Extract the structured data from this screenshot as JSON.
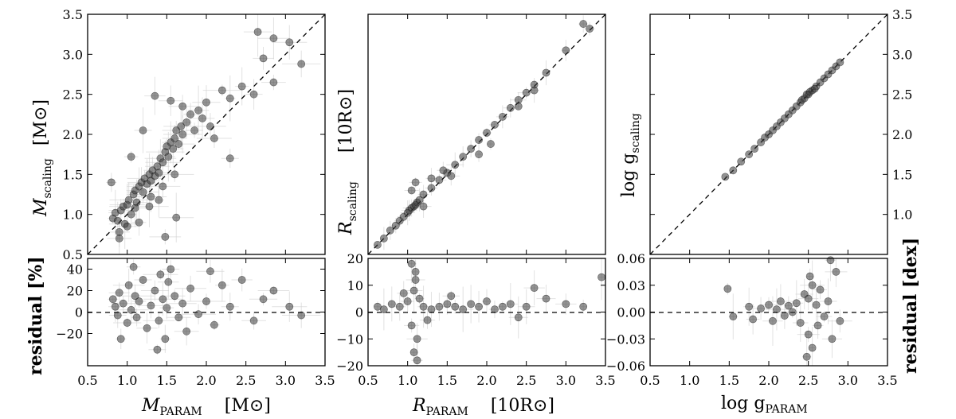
{
  "chart_data": [
    {
      "type": "scatter",
      "panel": "mass-main",
      "xlim": [
        0.5,
        3.5
      ],
      "ylim": [
        0.5,
        3.5
      ],
      "yticks": [
        "0.5",
        "1.0",
        "1.5",
        "2.0",
        "2.5",
        "3.0",
        "3.5"
      ],
      "ylabel": "M_scaling",
      "ylabel_main": "M",
      "ylabel_sub": "scaling",
      "ylabel_unit": "[M⊙]",
      "reference_line": "y = x (dashed)",
      "points": [
        [
          0.82,
          0.95
        ],
        [
          0.85,
          1.02
        ],
        [
          0.88,
          0.92
        ],
        [
          0.9,
          0.78
        ],
        [
          0.92,
          1.05
        ],
        [
          0.95,
          1.1
        ],
        [
          0.97,
          0.88
        ],
        [
          1.0,
          1.12
        ],
        [
          1.02,
          1.18
        ],
        [
          1.05,
          1.0
        ],
        [
          1.08,
          1.25
        ],
        [
          1.1,
          1.3
        ],
        [
          1.12,
          1.15
        ],
        [
          1.15,
          1.35
        ],
        [
          1.18,
          1.4
        ],
        [
          1.2,
          1.28
        ],
        [
          1.22,
          1.45
        ],
        [
          1.25,
          1.38
        ],
        [
          1.28,
          1.5
        ],
        [
          1.3,
          1.42
        ],
        [
          1.32,
          1.55
        ],
        [
          1.35,
          1.48
        ],
        [
          1.38,
          1.6
        ],
        [
          1.4,
          1.52
        ],
        [
          1.42,
          1.7
        ],
        [
          1.45,
          1.65
        ],
        [
          1.48,
          1.78
        ],
        [
          1.5,
          1.85
        ],
        [
          1.52,
          1.72
        ],
        [
          1.55,
          1.9
        ],
        [
          1.58,
          1.82
        ],
        [
          1.6,
          1.95
        ],
        [
          1.62,
          2.05
        ],
        [
          1.65,
          1.88
        ],
        [
          1.68,
          2.1
        ],
        [
          1.7,
          2.0
        ],
        [
          1.75,
          2.15
        ],
        [
          1.8,
          2.25
        ],
        [
          1.85,
          2.05
        ],
        [
          1.9,
          2.3
        ],
        [
          1.95,
          2.2
        ],
        [
          2.0,
          2.4
        ],
        [
          2.05,
          2.1
        ],
        [
          2.1,
          1.95
        ],
        [
          2.2,
          2.55
        ],
        [
          2.3,
          2.45
        ],
        [
          2.45,
          2.6
        ],
        [
          2.6,
          2.5
        ],
        [
          2.72,
          2.95
        ],
        [
          2.85,
          2.65
        ],
        [
          2.65,
          3.28
        ],
        [
          2.85,
          3.2
        ],
        [
          3.05,
          3.15
        ],
        [
          3.2,
          2.88
        ],
        [
          0.8,
          1.4
        ],
        [
          1.05,
          1.72
        ],
        [
          1.2,
          2.05
        ],
        [
          1.35,
          2.48
        ],
        [
          1.55,
          2.42
        ],
        [
          1.7,
          2.35
        ],
        [
          1.48,
          0.72
        ],
        [
          1.62,
          0.96
        ],
        [
          1.28,
          1.1
        ],
        [
          1.4,
          1.18
        ],
        [
          1.15,
          0.9
        ],
        [
          2.3,
          1.7
        ],
        [
          1.0,
          0.85
        ],
        [
          0.9,
          0.7
        ],
        [
          1.1,
          1.08
        ],
        [
          1.3,
          1.22
        ],
        [
          1.45,
          1.35
        ],
        [
          1.6,
          1.5
        ]
      ]
    },
    {
      "type": "scatter",
      "panel": "mass-residual",
      "xlim": [
        0.5,
        3.5
      ],
      "ylim": [
        -50,
        50
      ],
      "xticks": [
        "0.5",
        "1.0",
        "1.5",
        "2.0",
        "2.5",
        "3.0",
        "3.5"
      ],
      "yticks": [
        "−20",
        "0",
        "20",
        "40"
      ],
      "xlabel": "M_PARAM",
      "xlabel_main": "M",
      "xlabel_sub": "PARAM",
      "xlabel_unit": "[M⊙]",
      "ylabel": "residual [%]",
      "reference_line": "y = 0 (dashed)",
      "points": [
        [
          0.82,
          12
        ],
        [
          0.85,
          5
        ],
        [
          0.88,
          -3
        ],
        [
          0.9,
          18
        ],
        [
          0.95,
          8
        ],
        [
          1.0,
          -10
        ],
        [
          1.02,
          25
        ],
        [
          1.05,
          2
        ],
        [
          1.1,
          15
        ],
        [
          1.12,
          -5
        ],
        [
          1.15,
          10
        ],
        [
          1.2,
          30
        ],
        [
          1.25,
          -15
        ],
        [
          1.3,
          6
        ],
        [
          1.35,
          20
        ],
        [
          1.4,
          -8
        ],
        [
          1.42,
          35
        ],
        [
          1.45,
          12
        ],
        [
          1.48,
          -25
        ],
        [
          1.5,
          4
        ],
        [
          1.55,
          40
        ],
        [
          1.6,
          15
        ],
        [
          1.65,
          -5
        ],
        [
          1.7,
          8
        ],
        [
          1.8,
          22
        ],
        [
          1.9,
          -2
        ],
        [
          2.0,
          10
        ],
        [
          2.1,
          -12
        ],
        [
          2.2,
          25
        ],
        [
          2.3,
          5
        ],
        [
          2.45,
          30
        ],
        [
          2.6,
          -8
        ],
        [
          2.72,
          12
        ],
        [
          2.85,
          20
        ],
        [
          3.05,
          5
        ],
        [
          3.2,
          -3
        ],
        [
          0.92,
          -25
        ],
        [
          1.08,
          42
        ],
        [
          1.38,
          -35
        ],
        [
          1.52,
          28
        ],
        [
          1.75,
          -18
        ],
        [
          2.05,
          38
        ]
      ]
    },
    {
      "type": "scatter",
      "panel": "radius-main",
      "xlim": [
        0.5,
        3.5
      ],
      "ylim": [
        0.5,
        3.5
      ],
      "ylabel": "R_scaling",
      "ylabel_main": "R",
      "ylabel_sub": "scaling",
      "ylabel_unit": "[10R⊙]",
      "reference_line": "y = x (dashed)",
      "points": [
        [
          0.62,
          0.62
        ],
        [
          0.7,
          0.7
        ],
        [
          0.78,
          0.8
        ],
        [
          0.85,
          0.86
        ],
        [
          0.9,
          0.92
        ],
        [
          0.95,
          0.97
        ],
        [
          1.0,
          1.02
        ],
        [
          1.02,
          1.05
        ],
        [
          1.05,
          1.08
        ],
        [
          1.08,
          1.1
        ],
        [
          1.1,
          1.12
        ],
        [
          1.12,
          1.15
        ],
        [
          1.15,
          1.18
        ],
        [
          1.2,
          1.25
        ],
        [
          1.3,
          1.33
        ],
        [
          1.4,
          1.43
        ],
        [
          1.5,
          1.52
        ],
        [
          1.6,
          1.62
        ],
        [
          1.7,
          1.72
        ],
        [
          1.8,
          1.82
        ],
        [
          1.9,
          1.93
        ],
        [
          2.0,
          2.02
        ],
        [
          2.1,
          2.12
        ],
        [
          2.2,
          2.22
        ],
        [
          2.3,
          2.33
        ],
        [
          2.4,
          2.43
        ],
        [
          2.5,
          2.52
        ],
        [
          2.6,
          2.62
        ],
        [
          2.75,
          2.77
        ],
        [
          3.0,
          3.05
        ],
        [
          3.22,
          3.38
        ],
        [
          3.3,
          3.32
        ],
        [
          1.1,
          1.4
        ],
        [
          1.05,
          1.3
        ],
        [
          1.2,
          1.1
        ],
        [
          1.55,
          1.48
        ],
        [
          1.9,
          1.75
        ],
        [
          2.05,
          1.88
        ],
        [
          2.4,
          2.35
        ],
        [
          2.6,
          2.55
        ],
        [
          1.3,
          1.45
        ],
        [
          1.45,
          1.55
        ]
      ]
    },
    {
      "type": "scatter",
      "panel": "radius-residual",
      "xlim": [
        0.5,
        3.5
      ],
      "ylim": [
        -20,
        20
      ],
      "xticks": [
        "0.5",
        "1.0",
        "1.5",
        "2.0",
        "2.5",
        "3.0",
        "3.5"
      ],
      "yticks": [
        "−20",
        "−10",
        "0",
        "10",
        "20"
      ],
      "xlabel": "R_PARAM",
      "xlabel_main": "R",
      "xlabel_sub": "PARAM",
      "xlabel_unit": "[10R⊙]",
      "reference_line": "y = 0 (dashed)",
      "points": [
        [
          0.62,
          2
        ],
        [
          0.7,
          1
        ],
        [
          0.8,
          3
        ],
        [
          0.9,
          2
        ],
        [
          1.0,
          4
        ],
        [
          1.05,
          -5
        ],
        [
          1.08,
          8
        ],
        [
          1.1,
          12
        ],
        [
          1.12,
          -10
        ],
        [
          1.1,
          15
        ],
        [
          1.08,
          -15
        ],
        [
          1.15,
          5
        ],
        [
          1.2,
          2
        ],
        [
          1.3,
          1
        ],
        [
          1.4,
          2
        ],
        [
          1.5,
          3
        ],
        [
          1.6,
          2
        ],
        [
          1.7,
          1
        ],
        [
          1.8,
          3
        ],
        [
          1.9,
          2
        ],
        [
          2.0,
          4
        ],
        [
          2.1,
          1
        ],
        [
          2.2,
          2
        ],
        [
          2.3,
          3
        ],
        [
          2.5,
          2
        ],
        [
          2.75,
          5
        ],
        [
          3.0,
          3
        ],
        [
          3.22,
          2
        ],
        [
          3.45,
          13
        ],
        [
          1.05,
          18
        ],
        [
          1.12,
          -18
        ],
        [
          0.95,
          7
        ],
        [
          1.25,
          -3
        ],
        [
          1.55,
          6
        ],
        [
          2.4,
          -2
        ],
        [
          2.6,
          9
        ]
      ]
    },
    {
      "type": "scatter",
      "panel": "logg-main",
      "xlim": [
        0.5,
        3.5
      ],
      "ylim": [
        0.5,
        3.5
      ],
      "yticks": [
        "1.0",
        "1.5",
        "2.0",
        "2.5",
        "3.0",
        "3.5"
      ],
      "ylabel": "log g_scaling",
      "ylabel_main": "log g",
      "ylabel_sub": "scaling",
      "reference_line": "y = x (dashed)",
      "points": [
        [
          1.45,
          1.47
        ],
        [
          1.55,
          1.55
        ],
        [
          1.65,
          1.66
        ],
        [
          1.75,
          1.75
        ],
        [
          1.82,
          1.82
        ],
        [
          1.9,
          1.9
        ],
        [
          1.95,
          1.96
        ],
        [
          2.0,
          2.0
        ],
        [
          2.05,
          2.05
        ],
        [
          2.1,
          2.1
        ],
        [
          2.15,
          2.15
        ],
        [
          2.2,
          2.2
        ],
        [
          2.25,
          2.25
        ],
        [
          2.3,
          2.3
        ],
        [
          2.35,
          2.35
        ],
        [
          2.4,
          2.4
        ],
        [
          2.45,
          2.45
        ],
        [
          2.5,
          2.5
        ],
        [
          2.55,
          2.55
        ],
        [
          2.6,
          2.6
        ],
        [
          2.65,
          2.65
        ],
        [
          2.7,
          2.7
        ],
        [
          2.75,
          2.75
        ],
        [
          2.8,
          2.8
        ],
        [
          2.85,
          2.85
        ],
        [
          2.9,
          2.9
        ],
        [
          2.48,
          2.5
        ],
        [
          2.52,
          2.53
        ],
        [
          2.42,
          2.43
        ],
        [
          2.58,
          2.57
        ]
      ]
    },
    {
      "type": "scatter",
      "panel": "logg-residual",
      "xlim": [
        0.5,
        3.5
      ],
      "ylim": [
        -0.06,
        0.06
      ],
      "xticks": [
        "0.5",
        "1.0",
        "1.5",
        "2.0",
        "2.5",
        "3.0",
        "3.5"
      ],
      "yticks": [
        "−0.06",
        "−0.03",
        "0.00",
        "0.03",
        "0.06"
      ],
      "xlabel": "log g_PARAM",
      "xlabel_main": "log g",
      "xlabel_sub": "PARAM",
      "ylabel": "residual [dex]",
      "reference_line": "y = 0 (dashed)",
      "points": [
        [
          1.48,
          0.026
        ],
        [
          1.55,
          -0.005
        ],
        [
          1.75,
          0.006
        ],
        [
          1.8,
          -0.008
        ],
        [
          1.9,
          0.004
        ],
        [
          2.0,
          0.008
        ],
        [
          2.05,
          -0.01
        ],
        [
          2.1,
          0.003
        ],
        [
          2.15,
          0.012
        ],
        [
          2.2,
          -0.004
        ],
        [
          2.25,
          0.007
        ],
        [
          2.3,
          0.0
        ],
        [
          2.35,
          0.01
        ],
        [
          2.4,
          -0.012
        ],
        [
          2.45,
          0.02
        ],
        [
          2.5,
          0.015
        ],
        [
          2.5,
          -0.025
        ],
        [
          2.55,
          0.03
        ],
        [
          2.55,
          -0.04
        ],
        [
          2.6,
          0.008
        ],
        [
          2.62,
          -0.015
        ],
        [
          2.65,
          0.025
        ],
        [
          2.7,
          -0.005
        ],
        [
          2.75,
          0.012
        ],
        [
          2.8,
          -0.03
        ],
        [
          2.85,
          0.045
        ],
        [
          2.9,
          -0.01
        ],
        [
          2.52,
          0.04
        ],
        [
          2.48,
          -0.05
        ],
        [
          2.78,
          0.058
        ]
      ]
    }
  ]
}
